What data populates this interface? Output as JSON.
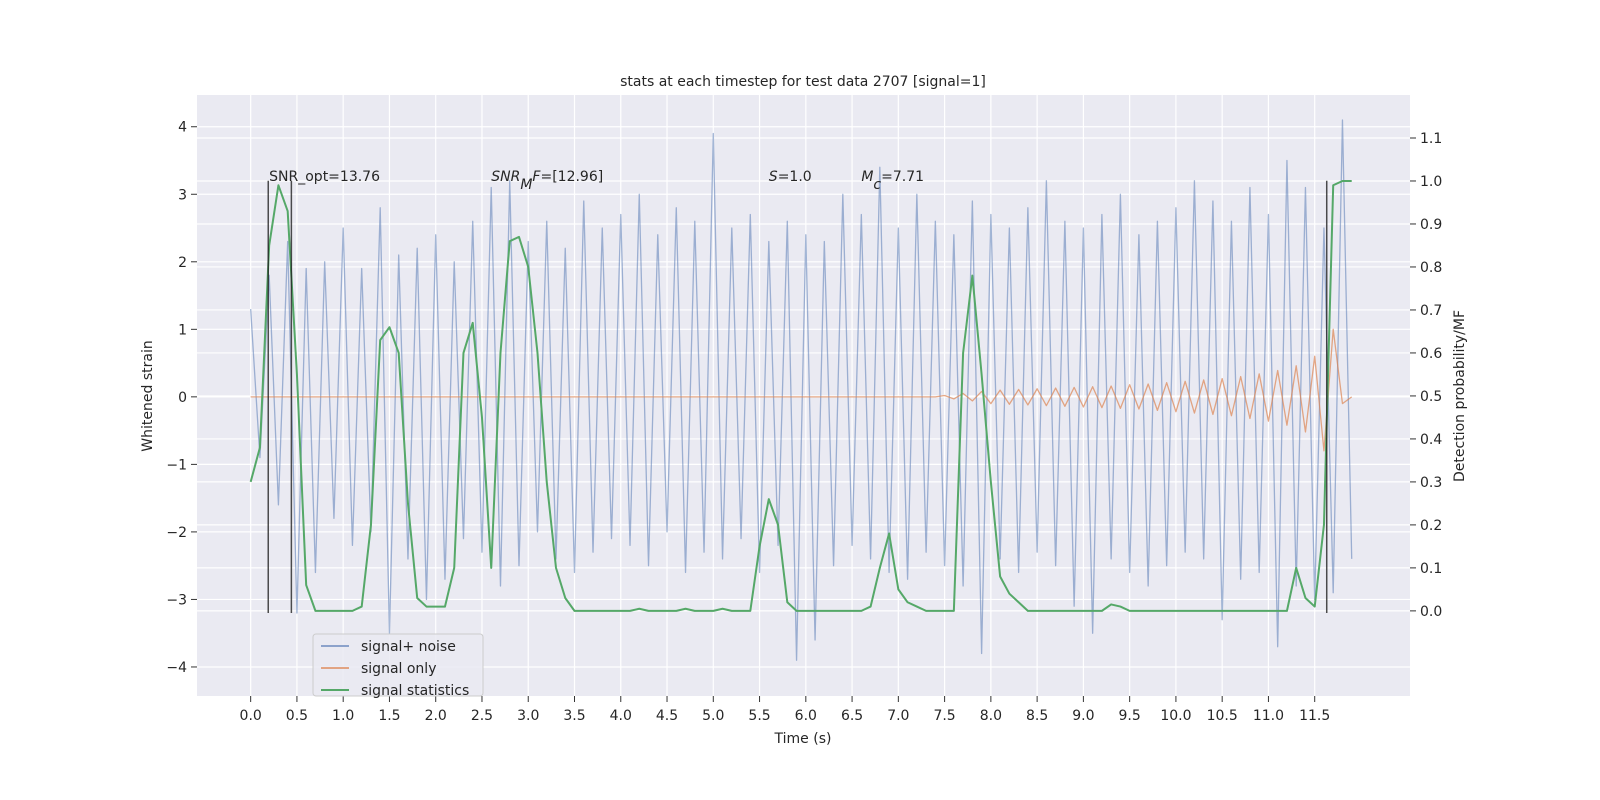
{
  "chart_data": {
    "type": "line",
    "title": "stats at each timestep for test data 2707 [signal=1]",
    "xlabel": "Time (s)",
    "ylabel": "Whitened strain",
    "y2label": "Detection probability/MF",
    "xlim": [
      -0.58,
      12.53
    ],
    "ylim": [
      -4.43,
      4.47
    ],
    "y2lim": [
      -0.198,
      1.2
    ],
    "xticks": [
      {
        "value": 0,
        "label": "0.0"
      },
      0.5,
      {
        "value": 1,
        "label": "1.0"
      },
      1.5,
      {
        "value": 2,
        "label": "2.0"
      },
      2.5,
      {
        "value": 3,
        "label": "3.0"
      },
      3.5,
      {
        "value": 4,
        "label": "4.0"
      },
      4.5,
      {
        "value": 5,
        "label": "5.0"
      },
      5.5,
      {
        "value": 6,
        "label": "6.0"
      },
      6.5,
      {
        "value": 7,
        "label": "7.0"
      },
      7.5,
      {
        "value": 8,
        "label": "8.0"
      },
      8.5,
      {
        "value": 9,
        "label": "9.0"
      },
      9.5,
      {
        "value": 10,
        "label": "10.0"
      },
      10.5,
      {
        "value": 11,
        "label": "11.0"
      },
      11.5
    ],
    "yticks": [
      {
        "value": -4,
        "label": "−4"
      },
      {
        "value": -3,
        "label": "−3"
      },
      {
        "value": -2,
        "label": "−2"
      },
      {
        "value": -1,
        "label": "−1"
      },
      0,
      1,
      2,
      3,
      4
    ],
    "y2ticks": [
      {
        "value": 0,
        "label": "0.0"
      },
      0.1,
      0.2,
      0.3,
      0.4,
      0.5,
      0.6,
      0.7,
      0.8,
      0.9,
      {
        "value": 1,
        "label": "1.0"
      },
      1.1
    ],
    "grid": true,
    "legend": "lower left",
    "x": [
      0,
      0.1,
      0.2,
      0.3,
      0.4,
      0.5,
      0.6,
      0.7,
      0.8,
      0.9,
      1,
      1.1,
      1.2,
      1.3,
      1.4,
      1.5,
      1.6,
      1.7,
      1.8,
      1.9,
      2,
      2.1,
      2.2,
      2.3,
      2.4,
      2.5,
      2.6,
      2.7,
      2.8,
      2.9,
      3,
      3.1,
      3.2,
      3.3,
      3.4,
      3.5,
      3.6,
      3.7,
      3.8,
      3.9,
      4,
      4.1,
      4.2,
      4.3,
      4.4,
      4.5,
      4.6,
      4.7,
      4.8,
      4.9,
      5,
      5.1,
      5.2,
      5.3,
      5.4,
      5.5,
      5.6,
      5.7,
      5.8,
      5.9,
      6,
      6.1,
      6.2,
      6.3,
      6.4,
      6.5,
      6.6,
      6.7,
      6.8,
      6.9,
      7,
      7.1,
      7.2,
      7.3,
      7.4,
      7.5,
      7.6,
      7.7,
      7.8,
      7.9,
      8,
      8.1,
      8.2,
      8.3,
      8.4,
      8.5,
      8.6,
      8.7,
      8.8,
      8.9,
      9,
      9.1,
      9.2,
      9.3,
      9.4,
      9.5,
      9.6,
      9.7,
      9.8,
      9.9,
      10,
      10.1,
      10.2,
      10.3,
      10.4,
      10.5,
      10.6,
      10.7,
      10.8,
      10.9,
      11,
      11.1,
      11.2,
      11.3,
      11.4,
      11.5,
      11.6,
      11.7,
      11.8,
      11.9
    ],
    "series": [
      {
        "name": "signal+ noise",
        "color": "#4c72b0",
        "opacity": 0.5,
        "values": [
          1.3,
          -0.9,
          1.8,
          -1.6,
          2.3,
          -3.2,
          1.9,
          -2.6,
          2.0,
          -1.8,
          2.5,
          -2.2,
          1.9,
          -2.0,
          2.8,
          -3.5,
          2.1,
          -2.4,
          2.2,
          -3.0,
          2.4,
          -2.7,
          2.0,
          -2.1,
          2.6,
          -2.3,
          3.1,
          -2.8,
          3.2,
          -2.5,
          2.3,
          -2.0,
          2.6,
          -2.4,
          2.2,
          -2.6,
          2.9,
          -2.3,
          2.5,
          -2.1,
          2.7,
          -2.2,
          3.0,
          -2.5,
          2.4,
          -2.0,
          2.8,
          -2.6,
          2.6,
          -2.3,
          3.9,
          -2.4,
          2.5,
          -2.1,
          2.7,
          -2.6,
          2.3,
          -2.2,
          2.6,
          -3.9,
          2.4,
          -3.6,
          2.3,
          -2.5,
          3.0,
          -2.2,
          2.7,
          -2.4,
          3.4,
          -2.6,
          2.5,
          -2.7,
          3.0,
          -2.3,
          2.6,
          -2.5,
          2.4,
          -2.8,
          2.9,
          -3.8,
          2.7,
          -2.4,
          2.5,
          -2.6,
          2.8,
          -2.3,
          3.2,
          -2.5,
          2.6,
          -3.1,
          2.5,
          -3.5,
          2.7,
          -2.4,
          3.0,
          -2.6,
          2.4,
          -2.8,
          2.6,
          -2.5,
          2.8,
          -2.3,
          3.2,
          -2.4,
          2.9,
          -3.3,
          2.6,
          -2.7,
          3.1,
          -2.6,
          2.7,
          -3.7,
          3.5,
          -2.8,
          3.1,
          -3.0,
          2.5,
          -2.9,
          4.1,
          -2.4
        ]
      },
      {
        "name": "signal only",
        "color": "#dd8452",
        "opacity": 0.7,
        "values": [
          0,
          0,
          0,
          0,
          0,
          0,
          0,
          0,
          0,
          0,
          0,
          0,
          0,
          0,
          0,
          0,
          0,
          0,
          0,
          0,
          0,
          0,
          0,
          0,
          0,
          0,
          0,
          0,
          0,
          0,
          0,
          0,
          0,
          0,
          0,
          0,
          0,
          0,
          0,
          0,
          0,
          0,
          0,
          0,
          0,
          0,
          0,
          0,
          0,
          0,
          0,
          0,
          0,
          0,
          0,
          0,
          0,
          0,
          0,
          0,
          0,
          0,
          0,
          0,
          0,
          0,
          0,
          0,
          0,
          0,
          0,
          0,
          0,
          0,
          0,
          0.02,
          -0.03,
          0.05,
          -0.06,
          0.08,
          -0.1,
          0.1,
          -0.11,
          0.11,
          -0.12,
          0.12,
          -0.13,
          0.13,
          -0.14,
          0.14,
          -0.15,
          0.15,
          -0.16,
          0.16,
          -0.17,
          0.18,
          -0.18,
          0.19,
          -0.2,
          0.21,
          -0.22,
          0.23,
          -0.24,
          0.25,
          -0.26,
          0.27,
          -0.28,
          0.3,
          -0.32,
          0.34,
          -0.36,
          0.39,
          -0.42,
          0.46,
          -0.52,
          0.6,
          -0.8,
          1.0,
          -0.1,
          0
        ]
      },
      {
        "name": "signal statistics",
        "color": "#55a868",
        "opacity": 1,
        "axis": "y2",
        "values": [
          0.3,
          0.38,
          0.85,
          0.99,
          0.93,
          0.55,
          0.06,
          0,
          0,
          0,
          0,
          0,
          0.01,
          0.2,
          0.63,
          0.66,
          0.6,
          0.25,
          0.03,
          0.01,
          0.01,
          0.01,
          0.1,
          0.6,
          0.67,
          0.45,
          0.1,
          0.6,
          0.86,
          0.87,
          0.8,
          0.6,
          0.3,
          0.1,
          0.03,
          0,
          0,
          0,
          0,
          0,
          0,
          0,
          0.005,
          0,
          0,
          0,
          0,
          0.005,
          0,
          0,
          0,
          0.005,
          0,
          0,
          0,
          0.15,
          0.26,
          0.2,
          0.02,
          0,
          0,
          0,
          0,
          0,
          0,
          0,
          0,
          0.01,
          0.1,
          0.18,
          0.05,
          0.02,
          0.01,
          0,
          0,
          0,
          0,
          0.6,
          0.78,
          0.55,
          0.3,
          0.08,
          0.04,
          0.02,
          0,
          0,
          0,
          0,
          0,
          0,
          0,
          0,
          0,
          0.015,
          0.01,
          0,
          0,
          0,
          0,
          0,
          0,
          0,
          0,
          0,
          0,
          0,
          0,
          0,
          0,
          0,
          0,
          0,
          0,
          0.1,
          0.03,
          0.01,
          0.2,
          0.99,
          1.0,
          1.0
        ]
      }
    ],
    "vlines": {
      "x": [
        0.19,
        0.44,
        11.63
      ],
      "ymin": -3.2,
      "ymax": 3.2,
      "color": "#222222"
    },
    "annotations": [
      {
        "x": 0.2,
        "y": 3.2,
        "parts": [
          {
            "text": "SNR_opt=13.76"
          }
        ]
      },
      {
        "x": 2.6,
        "y": 3.2,
        "parts": [
          {
            "text": "SNR",
            "style": "italic"
          },
          {
            "text": "M",
            "style": "sub"
          },
          {
            "text": "F",
            "style": "italic"
          },
          {
            "text": "=[12.96]"
          }
        ]
      },
      {
        "x": 5.6,
        "y": 3.2,
        "parts": [
          {
            "text": "S",
            "style": "italic"
          },
          {
            "text": "=1.0"
          }
        ]
      },
      {
        "x": 6.6,
        "y": 3.2,
        "parts": [
          {
            "text": "M",
            "style": "italic"
          },
          {
            "text": "c",
            "style": "sub"
          },
          {
            "text": "=7.71"
          }
        ]
      }
    ]
  }
}
